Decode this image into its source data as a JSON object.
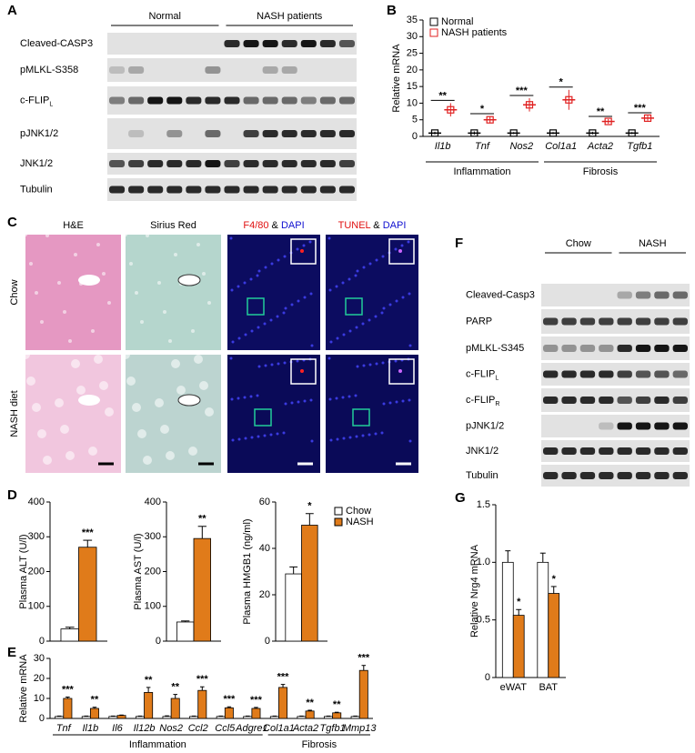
{
  "figure": {
    "panel_labels": [
      "A",
      "B",
      "C",
      "D",
      "E",
      "F",
      "G"
    ],
    "blot_a": {
      "groups": [
        "Normal",
        "NASH patients"
      ],
      "rows": [
        {
          "label": "Cleaved-CASP3"
        },
        {
          "label": "pMLKL-S358"
        },
        {
          "label": "c-FLIP",
          "sub": "L"
        },
        {
          "label": "pJNK1/2"
        },
        {
          "label": "JNK1/2"
        },
        {
          "label": "Tubulin"
        }
      ]
    },
    "blot_f": {
      "groups": [
        "Chow",
        "NASH"
      ],
      "rows": [
        {
          "label": "Cleaved-Casp3"
        },
        {
          "label": "PARP"
        },
        {
          "label": "pMLKL-S345"
        },
        {
          "label": "c-FLIP",
          "sub": "L"
        },
        {
          "label": "c-FLIP",
          "sub": "R"
        },
        {
          "label": "pJNK1/2"
        },
        {
          "label": "JNK1/2"
        },
        {
          "label": "Tubulin"
        }
      ]
    },
    "histology": {
      "columns": [
        [
          {
            "text": "H&E",
            "color": "#000000"
          }
        ],
        [
          {
            "text": "Sirius Red",
            "color": "#000000"
          }
        ],
        [
          {
            "text": "F4/80",
            "color": "#e01010"
          },
          {
            "text": " & ",
            "color": "#000000"
          },
          {
            "text": "DAPI",
            "color": "#1010d0"
          }
        ],
        [
          {
            "text": "TUNEL",
            "color": "#e01010"
          },
          {
            "text": " & ",
            "color": "#000000"
          },
          {
            "text": "DAPI",
            "color": "#1010d0"
          }
        ]
      ],
      "rows": [
        "Chow",
        "NASH diet"
      ]
    }
  },
  "chart_data": [
    {
      "type": "dot",
      "ylabel": "Relative mRNA",
      "categories": [
        "Il1b",
        "Tnf",
        "Nos2",
        "Col1a1",
        "Acta2",
        "Tgfb1"
      ],
      "groups": [
        "Inflammation",
        "Fibrosis"
      ],
      "series": [
        {
          "name": "Normal",
          "color": "#000000",
          "values": [
            1,
            1,
            1,
            1,
            1,
            1
          ],
          "errors": [
            0.4,
            0.5,
            0.3,
            0.3,
            0.4,
            0.3
          ]
        },
        {
          "name": "NASH patients",
          "color": "#e02020",
          "values": [
            8,
            5,
            9.5,
            11,
            4.5,
            5.5
          ],
          "errors": [
            2,
            1,
            2,
            3,
            0.7,
            0.8
          ]
        }
      ],
      "significance": [
        "**",
        "*",
        "***",
        "*",
        "**",
        "***"
      ],
      "ylim": [
        0,
        35
      ],
      "yticks": [
        0,
        5,
        10,
        15,
        20,
        25,
        30,
        35
      ]
    },
    {
      "type": "bar",
      "ylabel": "Plasma ALT (U/l)",
      "series": [
        {
          "color": "#ffffff",
          "values": [
            35
          ],
          "errors": [
            5
          ]
        },
        {
          "color": "#e07b1a",
          "values": [
            270
          ],
          "errors": [
            20
          ]
        }
      ],
      "significance": [
        "***"
      ],
      "ylim": [
        0,
        400
      ],
      "yticks": [
        0,
        100,
        200,
        300,
        400
      ]
    },
    {
      "type": "bar",
      "ylabel": "Plasma AST (U/l)",
      "series": [
        {
          "color": "#ffffff",
          "values": [
            55
          ],
          "errors": [
            3
          ]
        },
        {
          "color": "#e07b1a",
          "values": [
            295
          ],
          "errors": [
            35
          ]
        }
      ],
      "significance": [
        "**"
      ],
      "ylim": [
        0,
        400
      ],
      "yticks": [
        0,
        100,
        200,
        300,
        400
      ]
    },
    {
      "type": "bar",
      "ylabel": "Plasma HMGB1 (ng/ml)",
      "series": [
        {
          "name": "Chow",
          "color": "#ffffff",
          "values": [
            29
          ],
          "errors": [
            3
          ]
        },
        {
          "name": "NASH",
          "color": "#e07b1a",
          "values": [
            50
          ],
          "errors": [
            5
          ]
        }
      ],
      "significance": [
        "*"
      ],
      "ylim": [
        0,
        60
      ],
      "yticks": [
        0,
        20,
        40,
        60
      ]
    },
    {
      "type": "bar",
      "ylabel": "Relative mRNA",
      "categories": [
        "Tnf",
        "Il1b",
        "Il6",
        "Il12b",
        "Nos2",
        "Ccl2",
        "Ccl5",
        "Adgre1",
        "Col1a1",
        "Acta2",
        "Tgfb1",
        "Mmp13"
      ],
      "groups": [
        "Inflammation",
        "Fibrosis"
      ],
      "series": [
        {
          "color": "#ffffff",
          "values": [
            1,
            1,
            1,
            1,
            1,
            1,
            1,
            1,
            1,
            1,
            1,
            1
          ],
          "errors": [
            0.2,
            0.2,
            0.2,
            0.2,
            0.3,
            0.2,
            0.2,
            0.2,
            0.2,
            0.2,
            0.2,
            0.2
          ]
        },
        {
          "color": "#e07b1a",
          "values": [
            10,
            5,
            1.5,
            13,
            10,
            14,
            5.3,
            5,
            15.5,
            3.7,
            2.8,
            24
          ],
          "errors": [
            0.7,
            0.6,
            0.2,
            2.5,
            2,
            1.8,
            0.5,
            0.5,
            1.5,
            0.4,
            0.3,
            2.5
          ]
        }
      ],
      "significance": [
        "***",
        "**",
        null,
        "**",
        "**",
        "***",
        "***",
        "***",
        "***",
        "**",
        "**",
        "***"
      ],
      "ylim": [
        0,
        30
      ],
      "yticks": [
        0,
        10,
        20,
        30
      ]
    },
    {
      "type": "bar",
      "ylabel": "Relative Nrg4 mRNA",
      "categories": [
        "eWAT",
        "BAT"
      ],
      "series": [
        {
          "color": "#ffffff",
          "values": [
            1.0,
            1.0
          ],
          "errors": [
            0.1,
            0.08
          ]
        },
        {
          "color": "#e07b1a",
          "values": [
            0.54,
            0.73
          ],
          "errors": [
            0.05,
            0.06
          ]
        }
      ],
      "significance": [
        "*",
        "*"
      ],
      "ylim": [
        0,
        1.5
      ],
      "yticks": [
        0,
        0.5,
        {
          "value": 1,
          "label": "1.0"
        },
        1.5
      ]
    }
  ]
}
